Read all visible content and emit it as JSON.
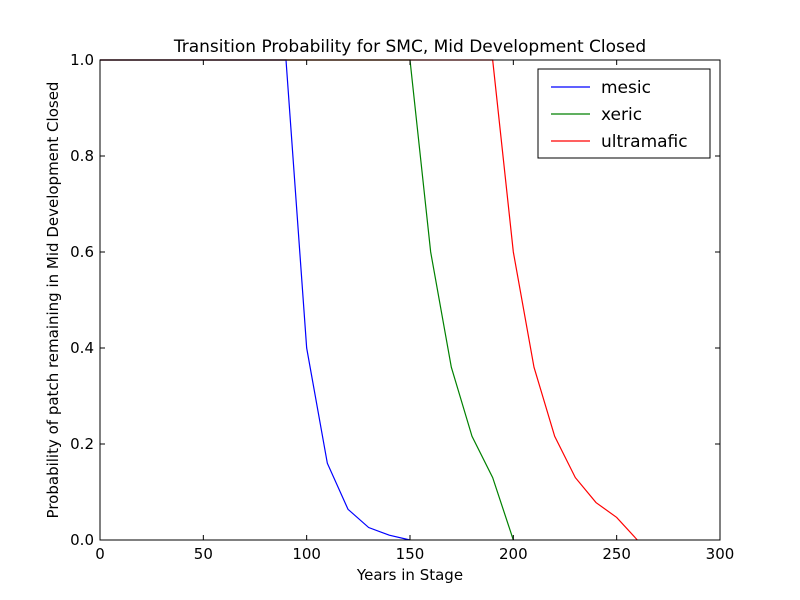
{
  "chart_data": {
    "type": "line",
    "title": "Transition Probability for SMC, Mid Development Closed",
    "xlabel": "Years in Stage",
    "ylabel": "Probability of patch remaining in Mid Development Closed",
    "xlim": [
      0,
      300
    ],
    "ylim": [
      0,
      1
    ],
    "xticks": [
      0,
      50,
      100,
      150,
      200,
      250,
      300
    ],
    "yticks": [
      0.0,
      0.2,
      0.4,
      0.6,
      0.8,
      1.0
    ],
    "xtick_labels": [
      "0",
      "50",
      "100",
      "150",
      "200",
      "250",
      "300"
    ],
    "ytick_labels": [
      "0.0",
      "0.2",
      "0.4",
      "0.6",
      "0.8",
      "1.0"
    ],
    "grid": false,
    "legend_position": "top-right",
    "series": [
      {
        "name": "mesic",
        "color": "#0000ff",
        "x": [
          0,
          90,
          100,
          110,
          120,
          130,
          140,
          150
        ],
        "y": [
          1.0,
          1.0,
          0.4,
          0.16,
          0.064,
          0.026,
          0.01,
          0.0
        ]
      },
      {
        "name": "xeric",
        "color": "#008000",
        "x": [
          0,
          150,
          160,
          170,
          180,
          190,
          200
        ],
        "y": [
          1.0,
          1.0,
          0.6,
          0.36,
          0.216,
          0.13,
          0.0
        ]
      },
      {
        "name": "ultramafic",
        "color": "#ff0000",
        "x": [
          0,
          190,
          200,
          210,
          220,
          230,
          240,
          250,
          260
        ],
        "y": [
          1.0,
          1.0,
          0.6,
          0.36,
          0.216,
          0.13,
          0.078,
          0.047,
          0.0
        ]
      }
    ]
  }
}
